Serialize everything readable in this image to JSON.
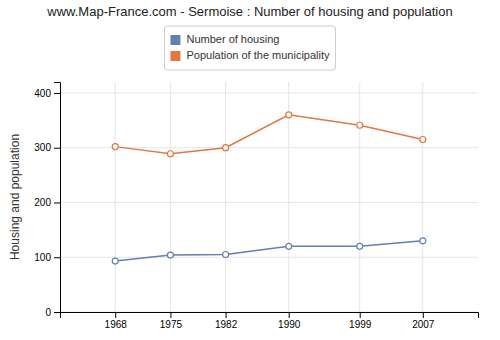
{
  "chart_data": {
    "type": "line",
    "title": "www.Map-France.com - Sermoise : Number of housing and population",
    "ylabel": "Housing and population",
    "x": [
      1968,
      1975,
      1982,
      1990,
      1999,
      2007
    ],
    "series": [
      {
        "name": "Number of housing",
        "color": "#6080b0",
        "marker": "circle",
        "line_style": "solid",
        "values": [
          93,
          104,
          105,
          120,
          120,
          130
        ]
      },
      {
        "name": "Population of the municipality",
        "color": "#e07840",
        "marker": "circle",
        "line_style": "solid",
        "values": [
          302,
          289,
          300,
          360,
          341,
          315
        ]
      }
    ],
    "xlim": [
      1961,
      2014
    ],
    "xticks": [
      1968,
      1975,
      1982,
      1990,
      1999,
      2007
    ],
    "ylim": [
      0,
      420
    ],
    "yticks": [
      0,
      100,
      200,
      300,
      400
    ],
    "grid": true,
    "legend": "top"
  }
}
